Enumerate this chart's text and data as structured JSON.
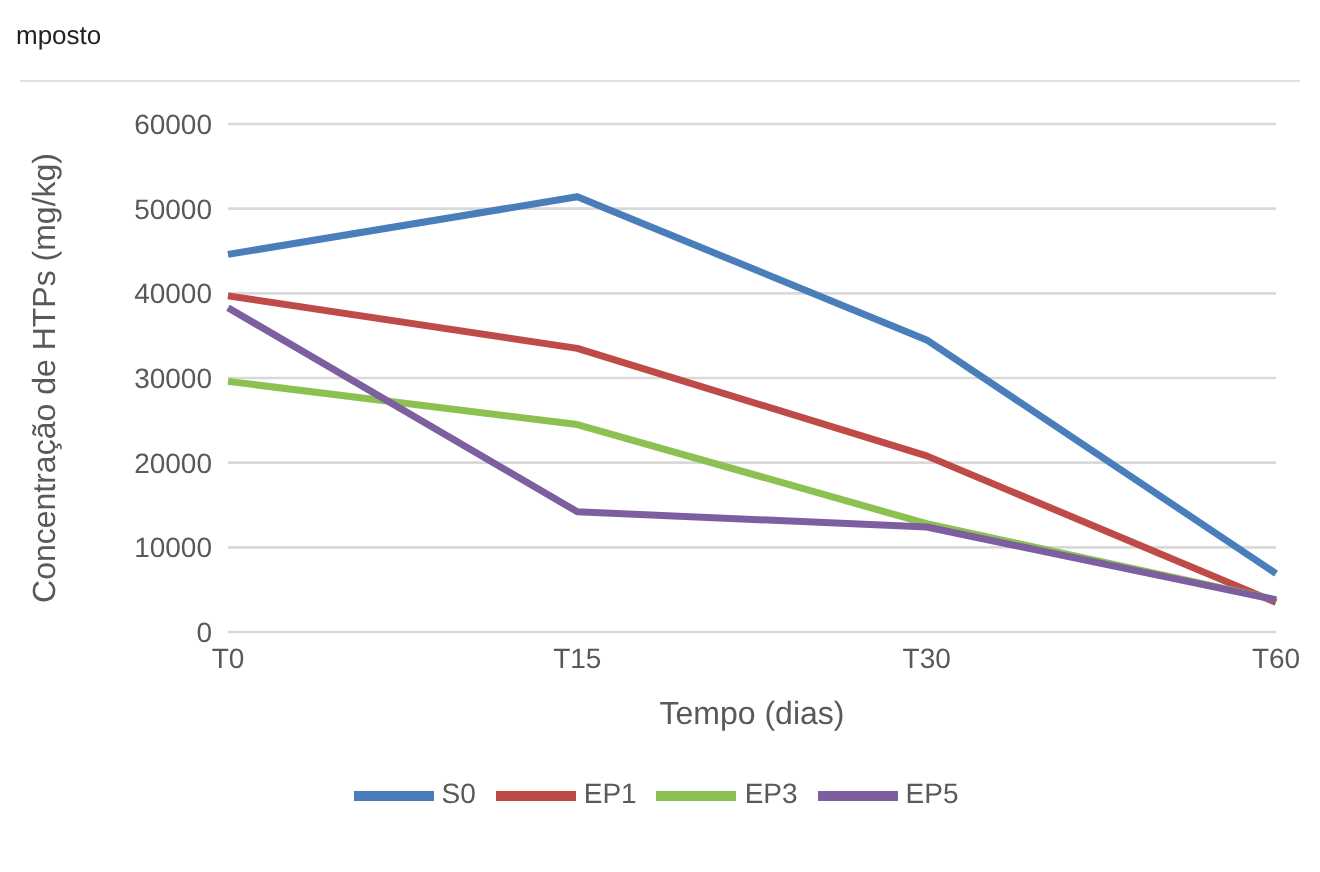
{
  "chart_data": {
    "type": "line",
    "title": "mposto",
    "xlabel": "Tempo (dias)",
    "ylabel": "Concentração de HTPs (mg/kg)",
    "categories": [
      "T0",
      "T15",
      "T30",
      "T60"
    ],
    "series": [
      {
        "name": "S0",
        "color": "#4a7ebb",
        "values": [
          44600,
          51400,
          34500,
          6900
        ]
      },
      {
        "name": "EP1",
        "color": "#be4b48",
        "values": [
          39700,
          33500,
          20800,
          3500
        ]
      },
      {
        "name": "EP3",
        "color": "#8cc152",
        "values": [
          29600,
          24500,
          12800,
          3800
        ]
      },
      {
        "name": "EP5",
        "color": "#7d5fa0",
        "values": [
          38300,
          14200,
          12400,
          3800
        ]
      }
    ],
    "ylim": [
      0,
      60000
    ],
    "yticks": [
      0,
      10000,
      20000,
      30000,
      40000,
      50000,
      60000
    ],
    "grid": "y",
    "legend": "bottom",
    "marker": "none",
    "line_style": "solid"
  }
}
